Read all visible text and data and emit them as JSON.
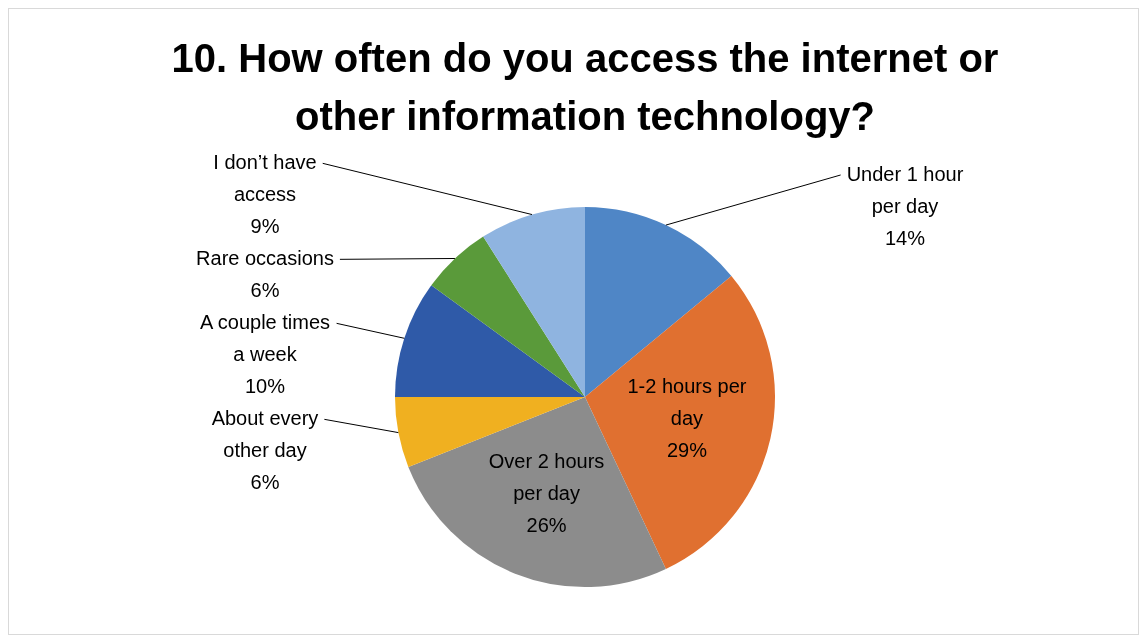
{
  "chart_data": {
    "type": "pie",
    "title": "10. How often do you access the internet or other information technology?",
    "categories": [
      "Under 1 hour per day",
      "1-2 hours per day",
      "Over 2 hours per day",
      "About every other day",
      "A couple times a week",
      "Rare occasions",
      "I don’t have access"
    ],
    "values": [
      14,
      29,
      26,
      6,
      10,
      6,
      9
    ],
    "value_labels": [
      "14%",
      "29%",
      "26%",
      "6%",
      "10%",
      "6%",
      "9%"
    ],
    "colors": [
      "#4f86c6",
      "#e07030",
      "#8c8c8c",
      "#f0b020",
      "#2f5aa8",
      "#5a9a3a",
      "#8fb4e0"
    ],
    "legend": false
  }
}
